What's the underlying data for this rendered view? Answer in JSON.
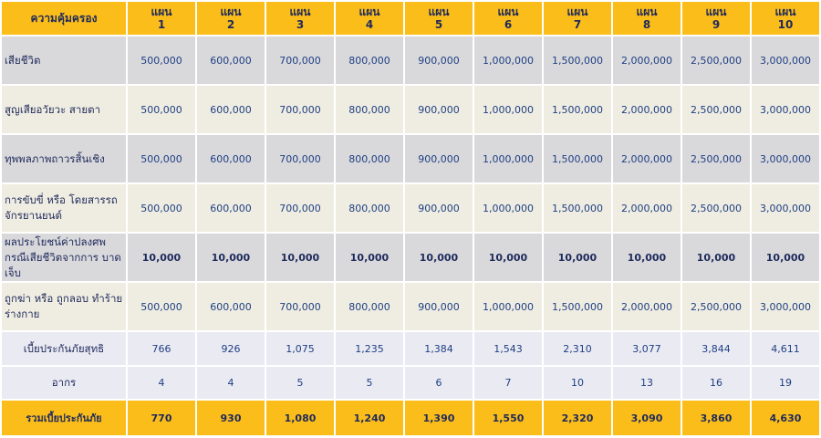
{
  "header": {
    "label": "ความคุ้มครอง",
    "plan_word": "แผน",
    "plans": [
      "1",
      "2",
      "3",
      "4",
      "5",
      "6",
      "7",
      "8",
      "9",
      "10"
    ]
  },
  "rows": [
    {
      "label": "เสียชีวิต",
      "values": [
        "500,000",
        "600,000",
        "700,000",
        "800,000",
        "900,000",
        "1,000,000",
        "1,500,000",
        "2,000,000",
        "2,500,000",
        "3,000,000"
      ]
    },
    {
      "label": "สูญเสียอวัยวะ  สายตา",
      "values": [
        "500,000",
        "600,000",
        "700,000",
        "800,000",
        "900,000",
        "1,000,000",
        "1,500,000",
        "2,000,000",
        "2,500,000",
        "3,000,000"
      ]
    },
    {
      "label": "ทุพพลภาพถาวรสิ้นเชิง",
      "values": [
        "500,000",
        "600,000",
        "700,000",
        "800,000",
        "900,000",
        "1,000,000",
        "1,500,000",
        "2,000,000",
        "2,500,000",
        "3,000,000"
      ]
    },
    {
      "label": "การขับขี่  หรือ โดยสารรถจักรยานยนต์",
      "values": [
        "500,000",
        "600,000",
        "700,000",
        "800,000",
        "900,000",
        "1,000,000",
        "1,500,000",
        "2,000,000",
        "2,500,000",
        "3,000,000"
      ]
    },
    {
      "label": "ผลประโยชน์ค่าปลงศพ กรณีเสียชีวิตจากการ บาดเจ็บ",
      "values": [
        "10,000",
        "10,000",
        "10,000",
        "10,000",
        "10,000",
        "10,000",
        "10,000",
        "10,000",
        "10,000",
        "10,000"
      ]
    },
    {
      "label": "ถูกฆ่า  หรือ  ถูกลอบ ทำร้ายร่างกาย",
      "values": [
        "500,000",
        "600,000",
        "700,000",
        "800,000",
        "900,000",
        "1,000,000",
        "1,500,000",
        "2,000,000",
        "2,500,000",
        "3,000,000"
      ]
    },
    {
      "label": "เบี้ยประกันภัยสุทธิ",
      "values": [
        "766",
        "926",
        "1,075",
        "1,235",
        "1,384",
        "1,543",
        "2,310",
        "3,077",
        "3,844",
        "4,611"
      ]
    },
    {
      "label": "อากร",
      "values": [
        "4",
        "4",
        "5",
        "5",
        "6",
        "7",
        "10",
        "13",
        "16",
        "19"
      ]
    },
    {
      "label": "รวมเบี้ยประกันภัย",
      "values": [
        "770",
        "930",
        "1,080",
        "1,240",
        "1,390",
        "1,550",
        "2,320",
        "3,090",
        "3,860",
        "4,630"
      ]
    }
  ]
}
